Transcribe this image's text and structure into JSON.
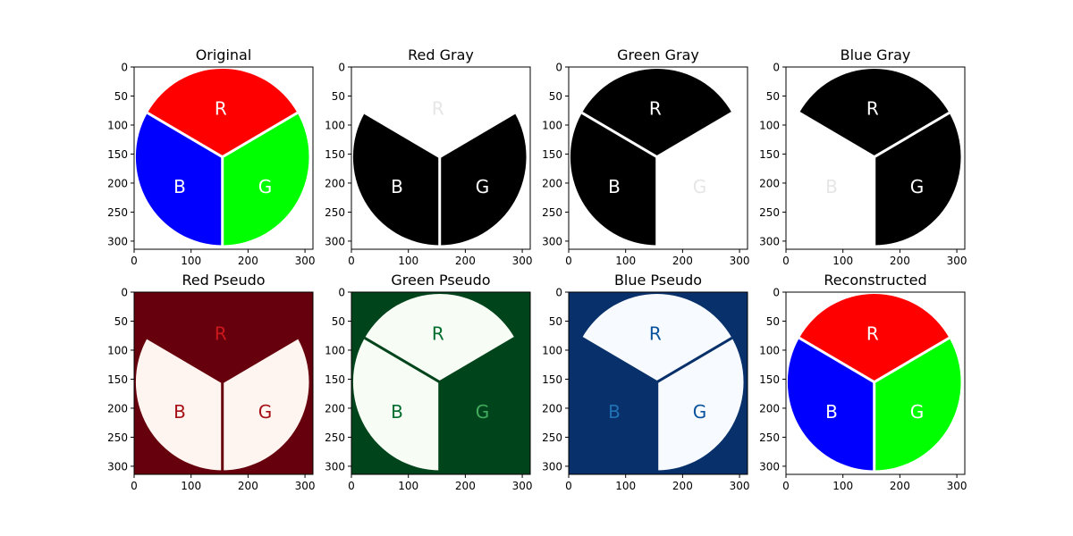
{
  "chart_data": [
    {
      "type": "image",
      "title": "Original",
      "fill": {
        "bg": "#ffffff",
        "red": "#ff0000",
        "green": "#00ff00",
        "blue": "#0000ff",
        "text_r": "#ffffff",
        "text_g": "#ffffff",
        "text_b": "#ffffff",
        "sep": "#ffffff"
      },
      "labels": [
        "R",
        "G",
        "B"
      ],
      "xticks": [
        0,
        100,
        200,
        300
      ],
      "yticks": [
        0,
        50,
        100,
        150,
        200,
        250,
        300
      ],
      "xlim": [
        0,
        314
      ],
      "ylim": [
        314,
        0
      ]
    },
    {
      "type": "image",
      "title": "Red Gray",
      "fill": {
        "bg": "#ffffff",
        "red": "#ffffff",
        "green": "#000000",
        "blue": "#000000",
        "text_r": "#e6e6e6",
        "text_g": "#ffffff",
        "text_b": "#ffffff",
        "sep": "#ffffff"
      },
      "labels": [
        "R",
        "G",
        "B"
      ],
      "xticks": [
        0,
        100,
        200,
        300
      ],
      "yticks": [
        0,
        50,
        100,
        150,
        200,
        250,
        300
      ],
      "xlim": [
        0,
        314
      ],
      "ylim": [
        314,
        0
      ]
    },
    {
      "type": "image",
      "title": "Green Gray",
      "fill": {
        "bg": "#ffffff",
        "red": "#000000",
        "green": "#ffffff",
        "blue": "#000000",
        "text_r": "#ffffff",
        "text_g": "#e6e6e6",
        "text_b": "#ffffff",
        "sep": "#ffffff"
      },
      "labels": [
        "R",
        "G",
        "B"
      ],
      "xticks": [
        0,
        100,
        200,
        300
      ],
      "yticks": [
        0,
        50,
        100,
        150,
        200,
        250,
        300
      ],
      "xlim": [
        0,
        314
      ],
      "ylim": [
        314,
        0
      ]
    },
    {
      "type": "image",
      "title": "Blue Gray",
      "fill": {
        "bg": "#ffffff",
        "red": "#000000",
        "green": "#000000",
        "blue": "#ffffff",
        "text_r": "#ffffff",
        "text_g": "#ffffff",
        "text_b": "#e6e6e6",
        "sep": "#ffffff"
      },
      "labels": [
        "R",
        "G",
        "B"
      ],
      "xticks": [
        0,
        100,
        200,
        300
      ],
      "yticks": [
        0,
        50,
        100,
        150,
        200,
        250,
        300
      ],
      "xlim": [
        0,
        314
      ],
      "ylim": [
        314,
        0
      ]
    },
    {
      "type": "image",
      "title": "Red Pseudo",
      "fill": {
        "bg": "#67000d",
        "red": "#67000d",
        "green": "#fff5f0",
        "blue": "#fff5f0",
        "text_r": "#cb181d",
        "text_g": "#a50f15",
        "text_b": "#a50f15",
        "sep": "#67000d"
      },
      "labels": [
        "R",
        "G",
        "B"
      ],
      "xticks": [
        0,
        100,
        200,
        300
      ],
      "yticks": [
        0,
        50,
        100,
        150,
        200,
        250,
        300
      ],
      "xlim": [
        0,
        314
      ],
      "ylim": [
        314,
        0
      ]
    },
    {
      "type": "image",
      "title": "Green Pseudo",
      "fill": {
        "bg": "#00441b",
        "red": "#f7fcf5",
        "green": "#00441b",
        "blue": "#f7fcf5",
        "text_r": "#006d2c",
        "text_g": "#41ab5d",
        "text_b": "#006d2c",
        "sep": "#00441b"
      },
      "labels": [
        "R",
        "G",
        "B"
      ],
      "xticks": [
        0,
        100,
        200,
        300
      ],
      "yticks": [
        0,
        50,
        100,
        150,
        200,
        250,
        300
      ],
      "xlim": [
        0,
        314
      ],
      "ylim": [
        314,
        0
      ]
    },
    {
      "type": "image",
      "title": "Blue Pseudo",
      "fill": {
        "bg": "#08306b",
        "red": "#f7fbff",
        "green": "#f7fbff",
        "blue": "#08306b",
        "text_r": "#08519c",
        "text_g": "#08519c",
        "text_b": "#2171b5",
        "sep": "#08306b"
      },
      "labels": [
        "R",
        "G",
        "B"
      ],
      "xticks": [
        0,
        100,
        200,
        300
      ],
      "yticks": [
        0,
        50,
        100,
        150,
        200,
        250,
        300
      ],
      "xlim": [
        0,
        314
      ],
      "ylim": [
        314,
        0
      ]
    },
    {
      "type": "image",
      "title": "Reconstructed",
      "fill": {
        "bg": "#ffffff",
        "red": "#ff0000",
        "green": "#00ff00",
        "blue": "#0000ff",
        "text_r": "#ffffff",
        "text_g": "#ffffff",
        "text_b": "#ffffff",
        "sep": "#ffffff"
      },
      "labels": [
        "R",
        "G",
        "B"
      ],
      "xticks": [
        0,
        100,
        200,
        300
      ],
      "yticks": [
        0,
        50,
        100,
        150,
        200,
        250,
        300
      ],
      "xlim": [
        0,
        314
      ],
      "ylim": [
        314,
        0
      ]
    }
  ]
}
